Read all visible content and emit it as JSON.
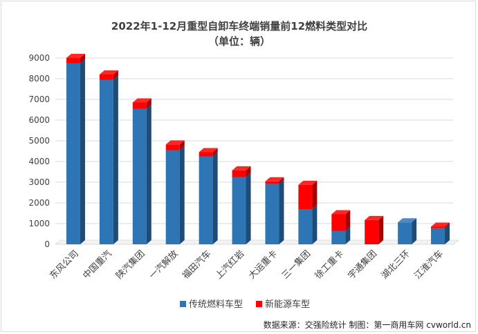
{
  "chart_data": {
    "type": "bar",
    "stacked": true,
    "title": "2022年1-12月重型自卸车终端销量前12燃料类型对比",
    "subtitle": "（单位：辆）",
    "categories": [
      "东风公司",
      "中国重汽",
      "陕汽集团",
      "一汽解放",
      "福田汽车",
      "上汽红岩",
      "大运重卡",
      "三一集团",
      "徐工重卡",
      "宇通集团",
      "湖北三环",
      "江淮汽车"
    ],
    "series": [
      {
        "name": "传统燃料车型",
        "color": "#2e75b6",
        "values": [
          8750,
          7950,
          6550,
          4550,
          4250,
          3250,
          2920,
          1700,
          650,
          0,
          1060,
          780
        ]
      },
      {
        "name": "新能源车型",
        "color": "#ff0000",
        "values": [
          250,
          250,
          300,
          270,
          200,
          320,
          120,
          1170,
          800,
          1170,
          0,
          70
        ]
      }
    ],
    "ylim": [
      0,
      9000
    ],
    "yticks": [
      0,
      1000,
      2000,
      3000,
      4000,
      5000,
      6000,
      7000,
      8000,
      9000
    ],
    "grid": true,
    "legend": "bottom",
    "source_note": "数据来源：交强险统计  制图：第一商用车网 cvworld.cn"
  }
}
